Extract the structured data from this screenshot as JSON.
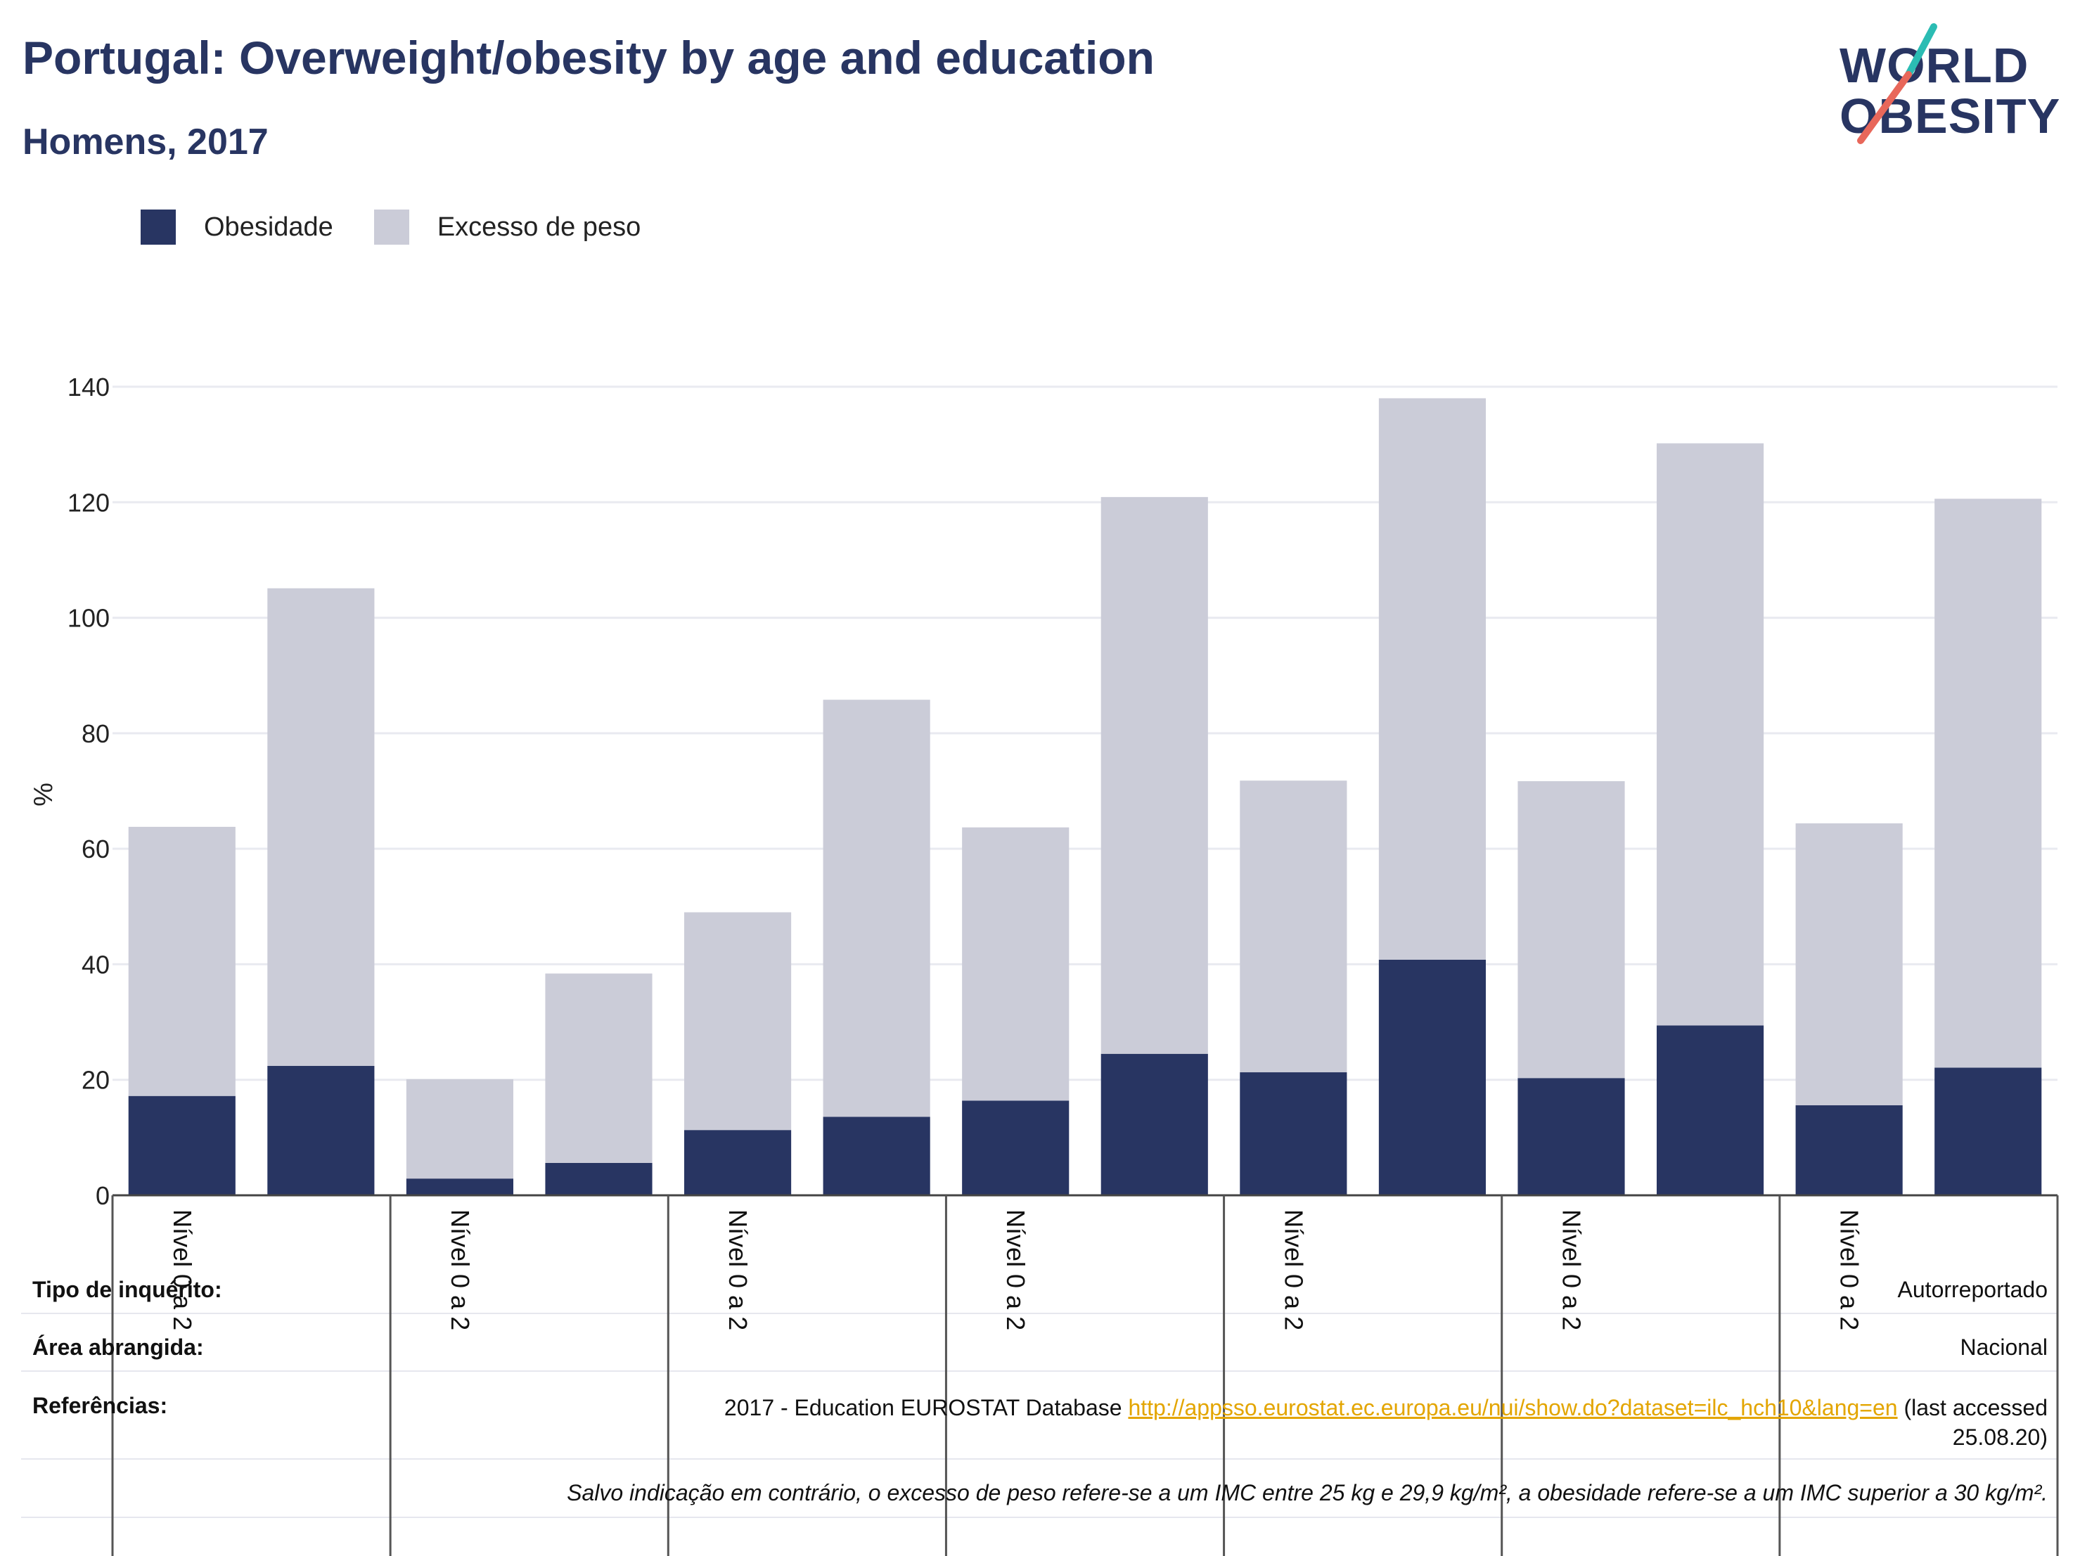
{
  "title": "Portugal: Overweight/obesity by age and education",
  "subtitle": "Homens, 2017",
  "logo": {
    "line1": "WORLD",
    "line2": "OBESITY"
  },
  "colors": {
    "obesity": "#283562",
    "overweight": "#cbccd8",
    "accent_teal": "#2bbcb3",
    "accent_red": "#e8675a",
    "link": "#e3a500"
  },
  "legend": [
    {
      "label": "Obesidade",
      "color": "#283562"
    },
    {
      "label": "Excesso de peso",
      "color": "#cbccd8"
    }
  ],
  "chart_data": {
    "type": "bar",
    "stacked": true,
    "ylabel": "%",
    "ylim": [
      0,
      140
    ],
    "yticks": [
      0,
      20,
      40,
      60,
      80,
      100,
      120,
      140
    ],
    "grid": true,
    "legend_position": "top-left",
    "categories": [
      "Nível 0 a 2",
      "",
      "Nível 0 a 2",
      "",
      "Nível 0 a 2",
      "",
      "Nível 0 a 2",
      "",
      "Nível 0 a 2",
      "",
      "Nível 0 a 2",
      "",
      "Nível 0 a 2",
      ""
    ],
    "series": [
      {
        "name": "Obesidade",
        "values": [
          17.2,
          22.4,
          2.9,
          5.6,
          11.3,
          13.6,
          16.4,
          24.5,
          21.3,
          40.8,
          20.3,
          29.4,
          15.6,
          22.1
        ]
      },
      {
        "name": "Excesso de peso",
        "values": [
          46.6,
          82.7,
          17.2,
          32.8,
          37.7,
          72.2,
          47.3,
          96.4,
          50.5,
          97.2,
          51.4,
          100.8,
          48.8,
          98.5
        ]
      }
    ]
  },
  "info": {
    "survey_label": "Tipo de inquérito:",
    "survey_value": "Autorreportado",
    "area_label": "Área abrangida:",
    "area_value": "Nacional",
    "refs_label": "Referências:",
    "refs_prefix": "2017 - Education EUROSTAT Database ",
    "refs_link": "http://appsso.eurostat.ec.europa.eu/nui/show.do?dataset=ilc_hch10&lang=en",
    "refs_suffix": " (last accessed",
    "refs_date": "25.08.20)",
    "note": "Salvo indicação em contrário, o excesso de peso refere-se a um IMC entre 25 kg e 29,9 kg/m², a obesidade refere-se a um IMC superior a 30 kg/m²."
  }
}
